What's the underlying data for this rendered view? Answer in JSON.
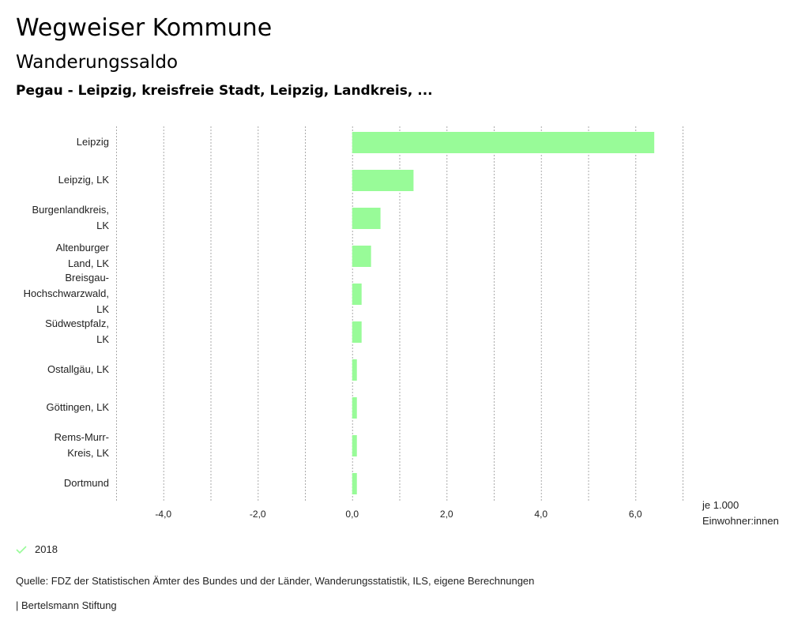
{
  "header": {
    "title": "Wegweiser Kommune",
    "subtitle": "Wanderungssaldo",
    "selection": "Pegau - Leipzig, kreisfreie Stadt, Leipzig, Landkreis, ..."
  },
  "chart_data": {
    "type": "bar",
    "orientation": "horizontal",
    "categories": [
      [
        "Leipzig"
      ],
      [
        "Leipzig, LK"
      ],
      [
        "Burgenlandkreis,",
        "LK"
      ],
      [
        "Altenburger",
        "Land, LK"
      ],
      [
        "Breisgau-",
        "Hochschwarzwald,",
        "LK"
      ],
      [
        "Südwestpfalz,",
        "LK"
      ],
      [
        "Ostallgäu, LK"
      ],
      [
        "Göttingen, LK"
      ],
      [
        "Rems-Murr-",
        "Kreis, LK"
      ],
      [
        "Dortmund"
      ]
    ],
    "series": [
      {
        "name": "2018",
        "values": [
          6.4,
          1.3,
          0.6,
          0.4,
          0.2,
          0.2,
          0.1,
          0.1,
          0.1,
          0.1
        ],
        "color": "#98fb98"
      }
    ],
    "xlim": [
      -5,
      7
    ],
    "ticks": [
      -4,
      -2,
      0,
      2,
      4,
      6
    ],
    "tick_labels": [
      "-4,0",
      "-2,0",
      "0,0",
      "2,0",
      "4,0",
      "6,0"
    ],
    "gridlines": [
      -5,
      -4,
      -3,
      -2,
      -1,
      0,
      1,
      2,
      3,
      4,
      5,
      6,
      7
    ],
    "xlabel": [
      "je 1.000",
      "Einwohner:innen"
    ],
    "legend_position": "bottom-left"
  },
  "legend": {
    "label": "2018",
    "color": "#98fb98"
  },
  "footer": {
    "source": "Quelle: FDZ der Statistischen Ämter des Bundes und der Länder, Wanderungsstatistik, ILS, eigene Berechnungen",
    "brand": "| Bertelsmann Stiftung"
  }
}
